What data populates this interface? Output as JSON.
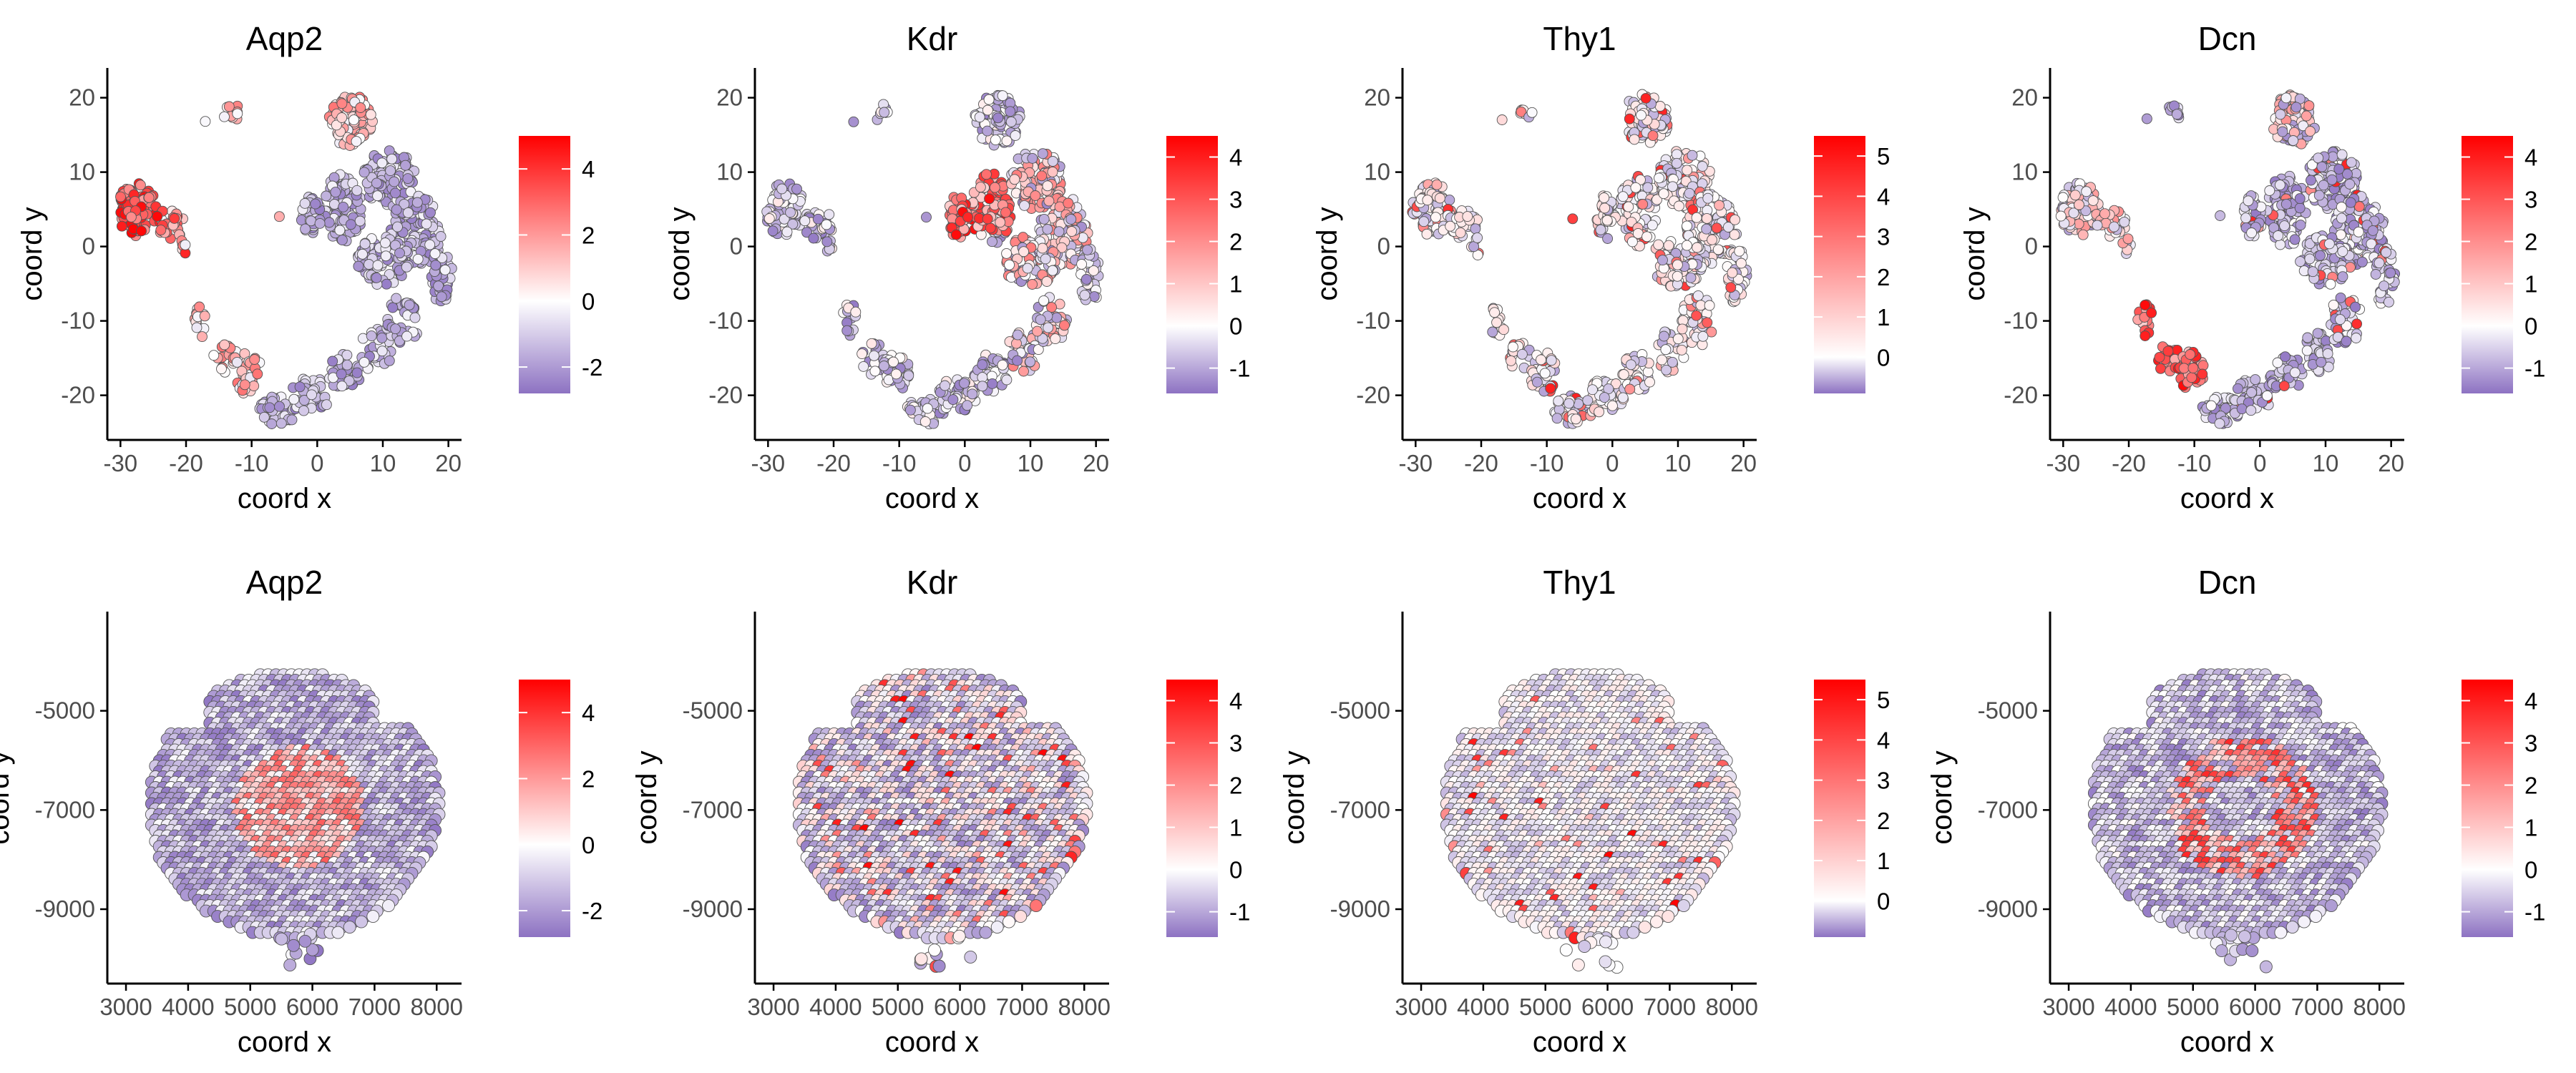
{
  "figure": {
    "colors": {
      "low": "#8d72c2",
      "mid": "#ffffff",
      "high": "#ff0000",
      "point_stroke": "#555555",
      "axis": "#000000",
      "tick_text": "#4d4d4d"
    }
  },
  "chart_data": [
    {
      "panel": "umap-aqp2",
      "type": "scatter",
      "title": "Aqp2",
      "xlabel": "coord x",
      "ylabel": "coord y",
      "xlim": [
        -32,
        22
      ],
      "ylim": [
        -26,
        24
      ],
      "xticks": [
        -30,
        -20,
        -10,
        0,
        10,
        20
      ],
      "yticks": [
        -20,
        -10,
        0,
        10,
        20
      ],
      "xtick_labels": [
        "-30",
        "-20",
        "-10",
        "0",
        "10",
        "20"
      ],
      "ytick_labels": [
        "-20",
        "-10",
        "0",
        "10",
        "20"
      ],
      "legend": {
        "min": -2.8,
        "max": 5,
        "ticks": [
          -2,
          0,
          2,
          4
        ],
        "labels": [
          "-2",
          "0",
          "2",
          "4"
        ]
      },
      "pattern": "aqp2",
      "seed": 11
    },
    {
      "panel": "umap-kdr",
      "type": "scatter",
      "title": "Kdr",
      "xlabel": "coord x",
      "ylabel": "coord y",
      "xlim": [
        -32,
        22
      ],
      "ylim": [
        -26,
        24
      ],
      "xticks": [
        -30,
        -20,
        -10,
        0,
        10,
        20
      ],
      "yticks": [
        -20,
        -10,
        0,
        10,
        20
      ],
      "xtick_labels": [
        "-30",
        "-20",
        "-10",
        "0",
        "10",
        "20"
      ],
      "ytick_labels": [
        "-20",
        "-10",
        "0",
        "10",
        "20"
      ],
      "legend": {
        "min": -1.6,
        "max": 4.5,
        "ticks": [
          -1,
          0,
          1,
          2,
          3,
          4
        ],
        "labels": [
          "-1",
          "0",
          "1",
          "2",
          "3",
          "4"
        ]
      },
      "pattern": "kdr",
      "seed": 23
    },
    {
      "panel": "umap-thy1",
      "type": "scatter",
      "title": "Thy1",
      "xlabel": "coord x",
      "ylabel": "coord y",
      "xlim": [
        -32,
        22
      ],
      "ylim": [
        -26,
        24
      ],
      "xticks": [
        -30,
        -20,
        -10,
        0,
        10,
        20
      ],
      "yticks": [
        -20,
        -10,
        0,
        10,
        20
      ],
      "xtick_labels": [
        "-30",
        "-20",
        "-10",
        "0",
        "10",
        "20"
      ],
      "ytick_labels": [
        "-20",
        "-10",
        "0",
        "10",
        "20"
      ],
      "legend": {
        "min": -0.9,
        "max": 5.5,
        "ticks": [
          0,
          1,
          2,
          3,
          4,
          5
        ],
        "labels": [
          "0",
          "1",
          "2",
          "3",
          "4",
          "5"
        ]
      },
      "pattern": "thy1",
      "seed": 37
    },
    {
      "panel": "umap-dcn",
      "type": "scatter",
      "title": "Dcn",
      "xlabel": "coord x",
      "ylabel": "coord y",
      "xlim": [
        -32,
        22
      ],
      "ylim": [
        -26,
        24
      ],
      "xticks": [
        -30,
        -20,
        -10,
        0,
        10,
        20
      ],
      "yticks": [
        -20,
        -10,
        0,
        10,
        20
      ],
      "xtick_labels": [
        "-30",
        "-20",
        "-10",
        "0",
        "10",
        "20"
      ],
      "ytick_labels": [
        "-20",
        "-10",
        "0",
        "10",
        "20"
      ],
      "legend": {
        "min": -1.6,
        "max": 4.5,
        "ticks": [
          -1,
          0,
          1,
          2,
          3,
          4
        ],
        "labels": [
          "-1",
          "0",
          "1",
          "2",
          "3",
          "4"
        ]
      },
      "pattern": "dcn",
      "seed": 41
    },
    {
      "panel": "spatial-aqp2",
      "type": "scatter",
      "title": "Aqp2",
      "xlabel": "coord x",
      "ylabel": "coord y",
      "xlim": [
        2700,
        8400
      ],
      "ylim": [
        -10500,
        -3000
      ],
      "xticks": [
        3000,
        4000,
        5000,
        6000,
        7000,
        8000
      ],
      "yticks": [
        -5000,
        -7000,
        -9000
      ],
      "xtick_labels": [
        "3000",
        "4000",
        "5000",
        "6000",
        "7000",
        "8000"
      ],
      "ytick_labels": [
        "-5000",
        "-7000",
        "-9000"
      ],
      "legend": {
        "min": -2.8,
        "max": 5,
        "ticks": [
          -2,
          0,
          2,
          4
        ],
        "labels": [
          "-2",
          "0",
          "2",
          "4"
        ]
      },
      "pattern": "aqp2",
      "seed": 53
    },
    {
      "panel": "spatial-kdr",
      "type": "scatter",
      "title": "Kdr",
      "xlabel": "coord x",
      "ylabel": "coord y",
      "xlim": [
        2700,
        8400
      ],
      "ylim": [
        -10500,
        -3000
      ],
      "xticks": [
        3000,
        4000,
        5000,
        6000,
        7000,
        8000
      ],
      "yticks": [
        -5000,
        -7000,
        -9000
      ],
      "xtick_labels": [
        "3000",
        "4000",
        "5000",
        "6000",
        "7000",
        "8000"
      ],
      "ytick_labels": [
        "-5000",
        "-7000",
        "-9000"
      ],
      "legend": {
        "min": -1.6,
        "max": 4.5,
        "ticks": [
          -1,
          0,
          1,
          2,
          3,
          4
        ],
        "labels": [
          "-1",
          "0",
          "1",
          "2",
          "3",
          "4"
        ]
      },
      "pattern": "kdr",
      "seed": 61
    },
    {
      "panel": "spatial-thy1",
      "type": "scatter",
      "title": "Thy1",
      "xlabel": "coord x",
      "ylabel": "coord y",
      "xlim": [
        2700,
        8400
      ],
      "ylim": [
        -10500,
        -3000
      ],
      "xticks": [
        3000,
        4000,
        5000,
        6000,
        7000,
        8000
      ],
      "yticks": [
        -5000,
        -7000,
        -9000
      ],
      "xtick_labels": [
        "3000",
        "4000",
        "5000",
        "6000",
        "7000",
        "8000"
      ],
      "ytick_labels": [
        "-5000",
        "-7000",
        "-9000"
      ],
      "legend": {
        "min": -0.9,
        "max": 5.5,
        "ticks": [
          0,
          1,
          2,
          3,
          4,
          5
        ],
        "labels": [
          "0",
          "1",
          "2",
          "3",
          "4",
          "5"
        ]
      },
      "pattern": "thy1",
      "seed": 71
    },
    {
      "panel": "spatial-dcn",
      "type": "scatter",
      "title": "Dcn",
      "xlabel": "coord x",
      "ylabel": "coord y",
      "xlim": [
        2700,
        8400
      ],
      "ylim": [
        -10500,
        -3000
      ],
      "xticks": [
        3000,
        4000,
        5000,
        6000,
        7000,
        8000
      ],
      "yticks": [
        -5000,
        -7000,
        -9000
      ],
      "xtick_labels": [
        "3000",
        "4000",
        "5000",
        "6000",
        "7000",
        "8000"
      ],
      "ytick_labels": [
        "-5000",
        "-7000",
        "-9000"
      ],
      "legend": {
        "min": -1.6,
        "max": 4.5,
        "ticks": [
          -1,
          0,
          1,
          2,
          3,
          4
        ],
        "labels": [
          "-1",
          "0",
          "1",
          "2",
          "3",
          "4"
        ]
      },
      "pattern": "dcn",
      "seed": 83
    }
  ]
}
